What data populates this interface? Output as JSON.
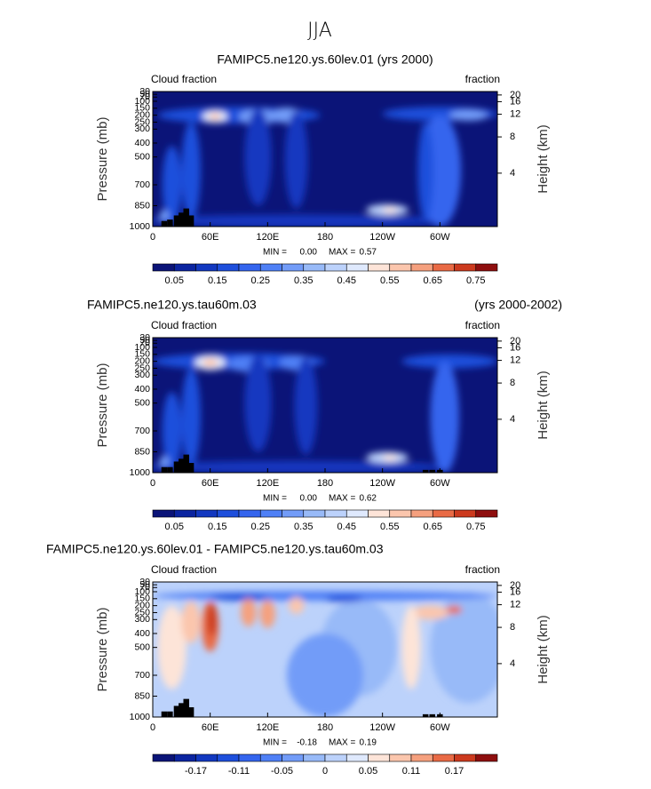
{
  "title": "JJA",
  "colors": [
    "#0b1478",
    "#0b24a0",
    "#1238c0",
    "#1e4fdc",
    "#3465ee",
    "#4f80f6",
    "#729cf8",
    "#98baf8",
    "#bcd2fb",
    "#dfe9fd",
    "#fde4d8",
    "#fbc6ad",
    "#f5a07e",
    "#e96a45",
    "#cc3a1e",
    "#8e0e0e"
  ],
  "chart_data": [
    {
      "type": "contour",
      "title": "FAMIPC5.ne120.ys.60lev.01 (yrs 2000)",
      "corner_left": "Cloud fraction",
      "corner_right": "fraction",
      "ylabel": "Pressure (mb)",
      "y2label": "Height (km)",
      "xlim": [
        0,
        360
      ],
      "ylim": [
        1000,
        30
      ],
      "xticks": [
        0,
        {
          "value": 60,
          "label": "60E"
        },
        {
          "value": 120,
          "label": "120E"
        },
        180,
        {
          "value": 240,
          "label": "120W"
        },
        {
          "value": 300,
          "label": "60W"
        }
      ],
      "yticks": [
        30,
        50,
        70,
        100,
        150,
        200,
        250,
        300,
        400,
        500,
        700,
        850,
        1000
      ],
      "y2ticks": [
        20,
        16,
        12,
        8,
        4
      ],
      "min_text": "MIN =",
      "min": {
        "value": 0,
        "label": "0.00"
      },
      "max_text": "MAX =",
      "max": 0.57,
      "colorbar_labels": [
        0.05,
        0.15,
        0.25,
        0.35,
        0.45,
        0.55,
        0.65,
        0.75
      ]
    },
    {
      "type": "contour",
      "title_left": "FAMIPC5.ne120.ys.tau60m.03",
      "title_right": "(yrs 2000-2002)",
      "corner_left": "Cloud fraction",
      "corner_right": "fraction",
      "ylabel": "Pressure (mb)",
      "y2label": "Height (km)",
      "xlim": [
        0,
        360
      ],
      "ylim": [
        1000,
        30
      ],
      "xticks": [
        0,
        {
          "value": 60,
          "label": "60E"
        },
        {
          "value": 120,
          "label": "120E"
        },
        180,
        {
          "value": 240,
          "label": "120W"
        },
        {
          "value": 300,
          "label": "60W"
        }
      ],
      "yticks": [
        30,
        50,
        70,
        100,
        150,
        200,
        250,
        300,
        400,
        500,
        700,
        850,
        1000
      ],
      "y2ticks": [
        20,
        16,
        12,
        8,
        4
      ],
      "min_text": "MIN =",
      "min": {
        "value": 0,
        "label": "0.00"
      },
      "max_text": "MAX =",
      "max": 0.62,
      "colorbar_labels": [
        0.05,
        0.15,
        0.25,
        0.35,
        0.45,
        0.55,
        0.65,
        0.75
      ]
    },
    {
      "type": "contour",
      "title_left": "FAMIPC5.ne120.ys.60lev.01 - FAMIPC5.ne120.ys.tau60m.03",
      "corner_left": "Cloud fraction",
      "corner_right": "fraction",
      "ylabel": "Pressure (mb)",
      "y2label": "Height (km)",
      "xlim": [
        0,
        360
      ],
      "ylim": [
        1000,
        30
      ],
      "xticks": [
        0,
        {
          "value": 60,
          "label": "60E"
        },
        {
          "value": 120,
          "label": "120E"
        },
        180,
        {
          "value": 240,
          "label": "120W"
        },
        {
          "value": 300,
          "label": "60W"
        }
      ],
      "yticks": [
        30,
        50,
        70,
        100,
        150,
        200,
        250,
        300,
        400,
        500,
        700,
        850,
        1000
      ],
      "y2ticks": [
        20,
        16,
        12,
        8,
        4
      ],
      "min_text": "MIN =",
      "min": -0.18,
      "max_text": "MAX =",
      "max": 0.19,
      "colorbar_labels": [
        -0.17,
        -0.11,
        -0.05,
        0,
        0.05,
        0.11,
        0.17
      ]
    }
  ]
}
